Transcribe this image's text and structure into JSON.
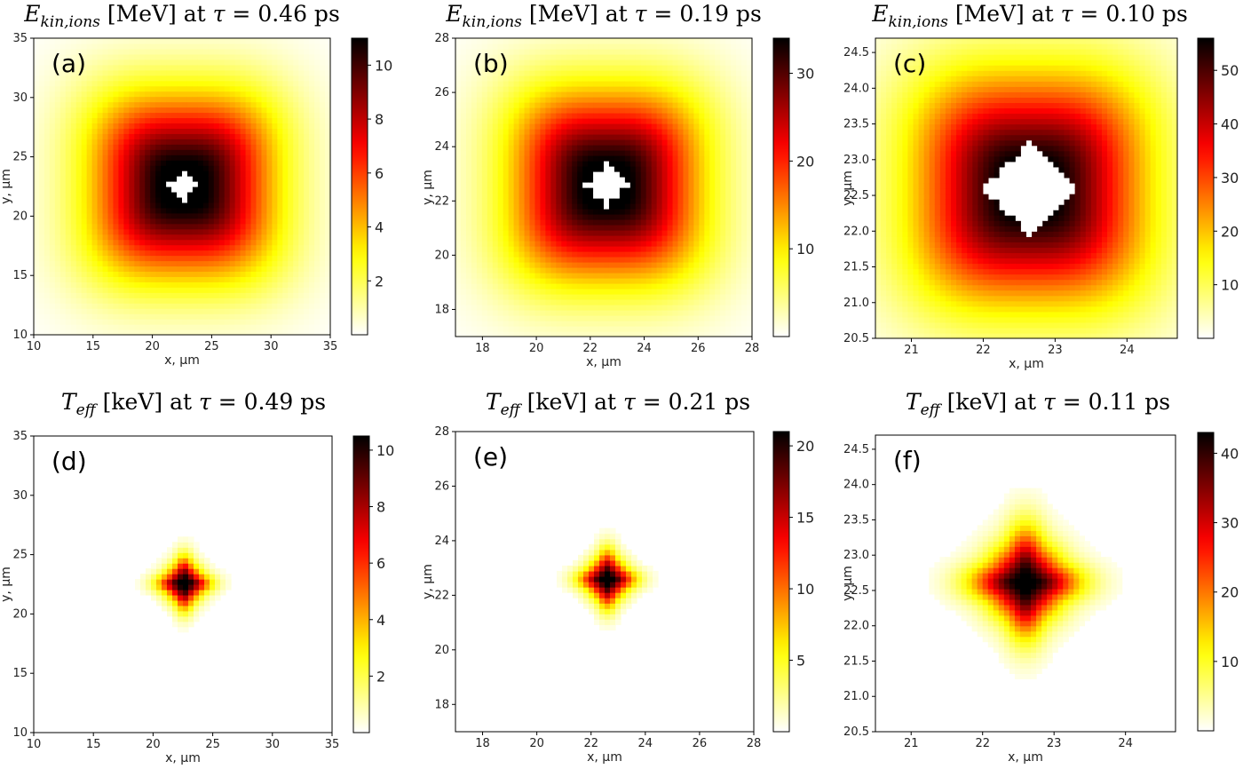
{
  "chart_data": [
    {
      "type": "heatmap",
      "panel_label": "(a)",
      "title": {
        "quantity": "E",
        "subscript": "kin,ions",
        "unit": "[MeV]",
        "tau_value": "0.46",
        "tau_unit": "ps"
      },
      "xlabel": "x, μm",
      "ylabel": "y, μm",
      "xlim": [
        10,
        35
      ],
      "ylim": [
        10,
        35
      ],
      "xticks": [
        10,
        15,
        20,
        25,
        30,
        35
      ],
      "yticks": [
        10,
        15,
        20,
        25,
        30,
        35
      ],
      "colormap": "hot_r",
      "clim": [
        0,
        11
      ],
      "colorbar_ticks": [
        2,
        4,
        6,
        8,
        10
      ],
      "center": [
        22.6,
        22.6
      ],
      "core_radius": 0.9,
      "falloff_radius": 7.5,
      "grid": false
    },
    {
      "type": "heatmap",
      "panel_label": "(b)",
      "title": {
        "quantity": "E",
        "subscript": "kin,ions",
        "unit": "[MeV]",
        "tau_value": "0.19",
        "tau_unit": "ps"
      },
      "xlabel": "x, μm",
      "ylabel": "y, μm",
      "xlim": [
        17,
        28
      ],
      "ylim": [
        17,
        28
      ],
      "xticks": [
        18,
        20,
        22,
        24,
        26,
        28
      ],
      "yticks": [
        18,
        20,
        22,
        24,
        26,
        28
      ],
      "colormap": "hot_r",
      "clim": [
        0,
        34
      ],
      "colorbar_ticks": [
        10,
        20,
        30
      ],
      "center": [
        22.6,
        22.6
      ],
      "core_radius": 0.55,
      "falloff_radius": 3.4,
      "grid": false
    },
    {
      "type": "heatmap",
      "panel_label": "(c)",
      "title": {
        "quantity": "E",
        "subscript": "kin,ions",
        "unit": "[MeV]",
        "tau_value": "0.10",
        "tau_unit": "ps"
      },
      "xlabel": "x, μm",
      "ylabel": "y, μm",
      "xlim": [
        20.5,
        24.7
      ],
      "ylim": [
        20.5,
        24.7
      ],
      "xticks": [
        21,
        22,
        23,
        24
      ],
      "yticks": [
        20.5,
        21.0,
        21.5,
        22.0,
        22.5,
        23.0,
        23.5,
        24.0,
        24.5
      ],
      "colormap": "hot_r",
      "clim": [
        0,
        56
      ],
      "colorbar_ticks": [
        10,
        20,
        30,
        40,
        50
      ],
      "center": [
        22.65,
        22.6
      ],
      "core_radius": 0.45,
      "falloff_radius": 1.55,
      "grid": false
    },
    {
      "type": "heatmap",
      "panel_label": "(d)",
      "title": {
        "quantity": "T",
        "subscript": "eff",
        "unit": "[keV]",
        "tau_value": "0.49",
        "tau_unit": "ps"
      },
      "xlabel": "x, μm",
      "ylabel": "y, μm",
      "xlim": [
        10,
        35
      ],
      "ylim": [
        10,
        35
      ],
      "xticks": [
        10,
        15,
        20,
        25,
        30,
        35
      ],
      "yticks": [
        10,
        15,
        20,
        25,
        30,
        35
      ],
      "colormap": "hot_r",
      "clim": [
        0,
        10.5
      ],
      "colorbar_ticks": [
        2,
        4,
        6,
        8,
        10
      ],
      "center": [
        22.6,
        22.6
      ],
      "core_radius": 0.0,
      "falloff_radius": 1.6,
      "grid": false
    },
    {
      "type": "heatmap",
      "panel_label": "(e)",
      "title": {
        "quantity": "T",
        "subscript": "eff",
        "unit": "[keV]",
        "tau_value": "0.21",
        "tau_unit": "ps"
      },
      "xlabel": "x, μm",
      "ylabel": "y, μm",
      "xlim": [
        17,
        28
      ],
      "ylim": [
        17,
        28
      ],
      "xticks": [
        18,
        20,
        22,
        24,
        26,
        28
      ],
      "yticks": [
        18,
        20,
        22,
        24,
        26,
        28
      ],
      "colormap": "hot_r",
      "clim": [
        0,
        21
      ],
      "colorbar_ticks": [
        5,
        10,
        15,
        20
      ],
      "center": [
        22.6,
        22.6
      ],
      "core_radius": 0.0,
      "falloff_radius": 0.75,
      "grid": false
    },
    {
      "type": "heatmap",
      "panel_label": "(f)",
      "title": {
        "quantity": "T",
        "subscript": "eff",
        "unit": "[keV]",
        "tau_value": "0.11",
        "tau_unit": "ps"
      },
      "xlabel": "x, μm",
      "ylabel": "y, μm",
      "xlim": [
        20.5,
        24.7
      ],
      "ylim": [
        20.5,
        24.7
      ],
      "xticks": [
        21,
        22,
        23,
        24
      ],
      "yticks": [
        20.5,
        21.0,
        21.5,
        22.0,
        22.5,
        23.0,
        23.5,
        24.0,
        24.5
      ],
      "colormap": "hot_r",
      "clim": [
        0,
        43
      ],
      "colorbar_ticks": [
        10,
        20,
        30,
        40
      ],
      "center": [
        22.6,
        22.62
      ],
      "core_radius": 0.0,
      "falloff_radius": 0.55,
      "grid": false
    }
  ]
}
